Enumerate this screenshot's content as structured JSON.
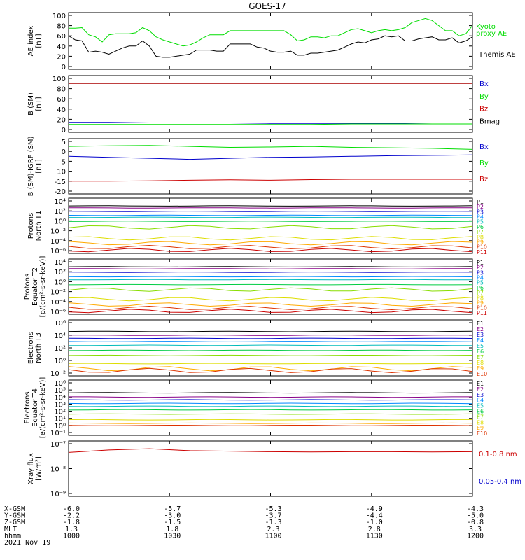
{
  "title": "GOES-17",
  "colors": {
    "black": "#000000",
    "green": "#00dd00",
    "blue": "#0000cc",
    "red": "#cc0000",
    "P": [
      "#000000",
      "#880088",
      "#0000cc",
      "#0088ff",
      "#00bbbb",
      "#00cc44",
      "#88dd00",
      "#dddd00",
      "#ffaa00",
      "#dd3300",
      "#cc0000"
    ],
    "E": [
      "#000000",
      "#880088",
      "#0000cc",
      "#0088ff",
      "#00bbbb",
      "#00cc44",
      "#88dd00",
      "#dddd00",
      "#ffaa00",
      "#dd3300",
      "#cc0000"
    ]
  },
  "footer": {
    "labels": [
      "X-GSM",
      "Y-GSM",
      "Z-GSM",
      "MLT",
      "hhmm",
      "2021 Nov 19"
    ],
    "columns": [
      {
        "vals": [
          "-6.0",
          "-2.2",
          "-1.8",
          "1.3",
          "1000"
        ]
      },
      {
        "vals": [
          "-5.7",
          "-3.0",
          "-1.5",
          "1.8",
          "1030"
        ]
      },
      {
        "vals": [
          "-5.3",
          "-3.7",
          "-1.3",
          "2.3",
          "1100"
        ]
      },
      {
        "vals": [
          "-4.9",
          "-4.4",
          "-1.0",
          "2.8",
          "1130"
        ]
      },
      {
        "vals": [
          "-4.3",
          "-5.0",
          "-0.8",
          "3.3",
          "1200"
        ]
      }
    ]
  },
  "chart_data": [
    {
      "type": "line",
      "id": "ae",
      "ylabel": [
        "AE index",
        "[nT]"
      ],
      "yticks": [
        "100",
        "80",
        "60",
        "40",
        "20",
        "0"
      ],
      "ylim": [
        0,
        100
      ],
      "x": [
        0,
        2,
        4,
        6,
        8,
        10,
        12,
        14,
        16,
        18,
        20,
        22,
        24,
        26,
        28,
        30,
        32,
        34,
        36,
        38,
        40,
        42,
        44,
        46,
        48,
        50,
        52,
        54,
        56,
        58,
        60,
        62,
        64,
        66,
        68,
        70,
        72,
        74,
        76,
        78,
        80,
        82,
        84,
        86,
        88,
        90,
        92,
        94,
        96,
        98,
        100,
        102,
        104,
        106,
        108,
        110,
        112,
        114,
        116,
        118,
        120
      ],
      "series": [
        {
          "name": "Kyoto proxy AE",
          "legend": [
            "Kyoto",
            "proxy AE"
          ],
          "color": "green",
          "values": [
            75,
            75,
            76,
            62,
            58,
            48,
            62,
            64,
            64,
            64,
            66,
            76,
            70,
            58,
            52,
            48,
            44,
            40,
            42,
            48,
            56,
            62,
            62,
            62,
            70,
            70,
            70,
            70,
            70,
            70,
            70,
            70,
            70,
            62,
            50,
            52,
            58,
            58,
            56,
            60,
            60,
            66,
            72,
            74,
            70,
            66,
            70,
            72,
            70,
            72,
            76,
            86,
            90,
            94,
            90,
            80,
            70,
            70,
            60,
            64,
            80
          ]
        },
        {
          "name": "Themis AE",
          "legend": [
            "Themis AE"
          ],
          "color": "black",
          "values": [
            60,
            52,
            50,
            28,
            30,
            28,
            24,
            30,
            36,
            40,
            40,
            50,
            40,
            20,
            18,
            18,
            20,
            22,
            24,
            32,
            32,
            32,
            30,
            30,
            44,
            44,
            44,
            44,
            38,
            36,
            30,
            28,
            28,
            30,
            22,
            22,
            26,
            26,
            28,
            30,
            32,
            38,
            44,
            48,
            46,
            52,
            54,
            60,
            58,
            60,
            50,
            50,
            54,
            56,
            58,
            52,
            52,
            56,
            46,
            50,
            58
          ]
        }
      ]
    },
    {
      "type": "line",
      "id": "bsm",
      "ylabel": [
        "B (SM)",
        "[nT]"
      ],
      "yticks": [
        "100",
        "80",
        "60",
        "40",
        "20",
        "0"
      ],
      "ylim": [
        0,
        100
      ],
      "series": [
        {
          "name": "Bx",
          "color": "blue",
          "values": [
            14,
            14,
            13,
            13,
            13,
            12,
            12,
            12,
            12,
            13,
            13
          ]
        },
        {
          "name": "By",
          "color": "green",
          "values": [
            10,
            10,
            10,
            10,
            10,
            10,
            10,
            11,
            11,
            11,
            11
          ]
        },
        {
          "name": "Bz",
          "color": "red",
          "values": [
            90,
            90,
            90,
            90,
            90,
            90,
            90,
            90,
            90,
            90,
            90
          ]
        },
        {
          "name": "Bmag",
          "color": "black",
          "values": [
            91,
            91,
            91,
            91,
            91,
            91,
            91,
            91,
            91,
            91,
            91
          ]
        }
      ]
    },
    {
      "type": "line",
      "id": "bigrf",
      "ylabel": [
        "B (SM)-IGRF (SM)",
        "[nT]"
      ],
      "yticks": [
        "5",
        "0",
        "-5",
        "-10",
        "-15",
        "-20"
      ],
      "ylim": [
        -20,
        5
      ],
      "series": [
        {
          "name": "Bx",
          "color": "blue",
          "values": [
            -2.5,
            -3,
            -3.5,
            -4,
            -3.5,
            -3,
            -2.8,
            -2.5,
            -2.2,
            -2,
            -1.8
          ]
        },
        {
          "name": "By",
          "color": "green",
          "values": [
            2.5,
            2.8,
            3,
            2.5,
            2,
            2.2,
            2.5,
            2,
            1.8,
            1.5,
            1
          ]
        },
        {
          "name": "Bz",
          "color": "red",
          "values": [
            -15,
            -15,
            -14.8,
            -14.5,
            -14.3,
            -14.5,
            -14.2,
            -14,
            -14,
            -14,
            -14
          ]
        }
      ]
    },
    {
      "type": "line",
      "id": "pn",
      "ylabel": [
        "Protons",
        "North T1"
      ],
      "yticks": [
        "10⁴",
        "10²",
        "10⁰",
        "10⁻²",
        "10⁻⁴",
        "10⁻⁶"
      ],
      "logrange": [
        -6,
        4
      ],
      "legend": [
        "P1",
        "P2",
        "P3",
        "P4",
        "P5",
        "P6",
        "P7",
        "P8",
        "P9",
        "P10",
        "P11"
      ],
      "levels": [
        3.0,
        2.6,
        1.9,
        1.1,
        0.7,
        -0.1,
        -1.3,
        -3.5,
        -4.5,
        -5.3,
        -5.9
      ]
    },
    {
      "type": "line",
      "id": "pe",
      "ylabel": [
        "Protons",
        "Equator T2",
        "[p/(cm²-s-sr-keV)]"
      ],
      "yticks": [
        "10⁴",
        "10²",
        "10⁰",
        "10⁻²",
        "10⁻⁴",
        "10⁻⁶"
      ],
      "logrange": [
        -6,
        4
      ],
      "legend": [
        "P1",
        "P2",
        "P3",
        "P4",
        "P5",
        "P6",
        "P7",
        "P8",
        "P9",
        "P10",
        "P11"
      ],
      "levels": [
        3.0,
        2.6,
        1.9,
        1.0,
        0.4,
        -0.6,
        -1.6,
        -3.5,
        -4.6,
        -5.3,
        -5.9
      ]
    },
    {
      "type": "line",
      "id": "en",
      "ylabel": [
        "Electrons",
        "North T3"
      ],
      "yticks": [
        "10⁶",
        "10⁴",
        "10²",
        "10⁰",
        "10⁻²"
      ],
      "logrange": [
        -2,
        6
      ],
      "legend": [
        "E1",
        "E2",
        "E3",
        "E4",
        "E5",
        "E6",
        "E7",
        "E8",
        "E9",
        "E10"
      ],
      "levels": [
        4.6,
        4.0,
        3.5,
        3.0,
        2.4,
        1.6,
        0.8,
        -0.5,
        -1.3,
        -1.6
      ]
    },
    {
      "type": "line",
      "id": "ee",
      "ylabel": [
        "Electrons",
        "Equator T4",
        "[e/(cm²-s-sr-keV)]"
      ],
      "yticks": [
        "10⁶",
        "10⁵",
        "10⁴",
        "10³",
        "10²",
        "10¹",
        "10⁰",
        "10⁻¹"
      ],
      "logrange": [
        -1,
        6
      ],
      "legend": [
        "E1",
        "E2",
        "E3",
        "E4",
        "E5",
        "E6",
        "E7",
        "E8",
        "E9",
        "E10"
      ],
      "levels": [
        4.6,
        4.0,
        3.6,
        3.1,
        2.7,
        2.2,
        1.6,
        0.8,
        0.3,
        0.0
      ]
    },
    {
      "type": "line",
      "id": "xray",
      "ylabel": [
        "Xray flux",
        "[W/m²]"
      ],
      "yticks": [
        "10⁻⁷",
        "10⁻⁸",
        "10⁻⁹"
      ],
      "logrange": [
        -9,
        -7
      ],
      "series": [
        {
          "name": "0.1-0.8 nm",
          "color": "red",
          "values": [
            -7.35,
            -7.25,
            -7.2,
            -7.28,
            -7.3,
            -7.32,
            -7.33,
            -7.32,
            -7.32,
            -7.33,
            -7.32
          ]
        },
        {
          "name": "0.05-0.4 nm",
          "color": "blue",
          "values": []
        }
      ]
    }
  ]
}
